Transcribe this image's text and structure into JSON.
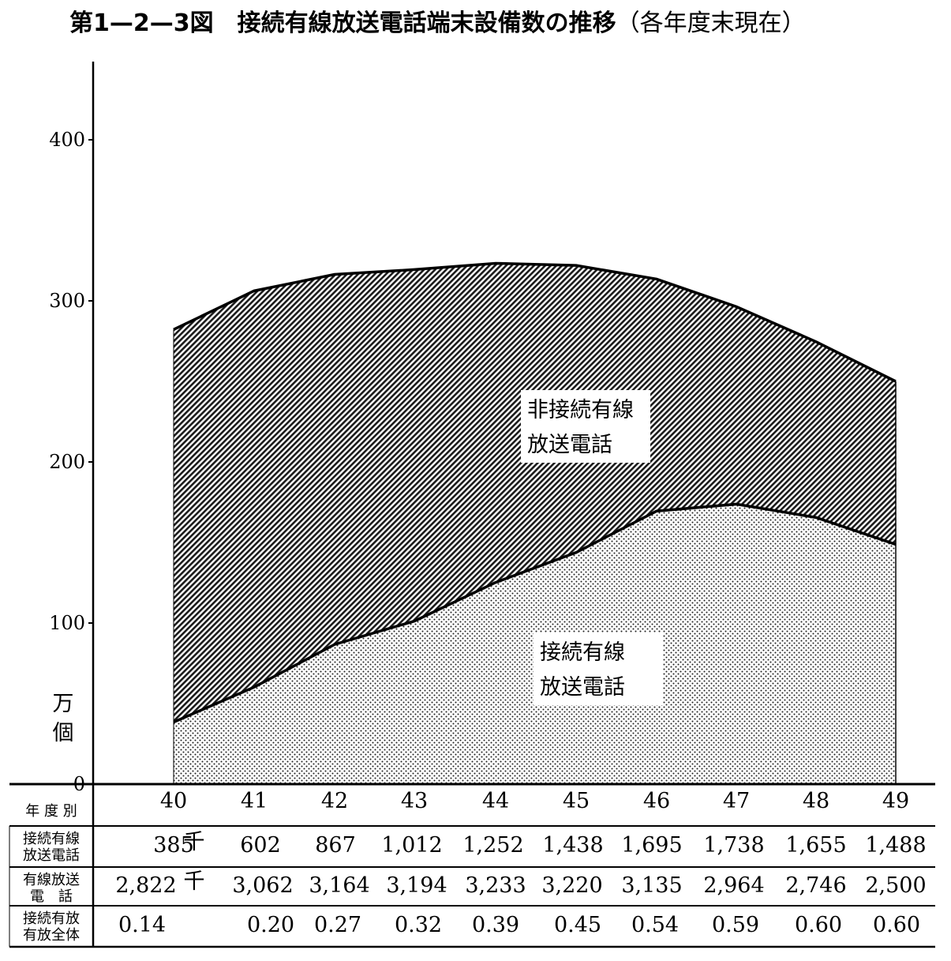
{
  "title": {
    "main": "第1—2—3図　接続有線放送電話端末設備数の推移",
    "paren": "（各年度末現在）"
  },
  "chart_data": {
    "type": "area",
    "stacked": true,
    "unit_label": [
      "万",
      "個"
    ],
    "y_ticks": [
      "0",
      "100",
      "200",
      "300",
      "400"
    ],
    "ylim": [
      0,
      400
    ],
    "categories": [
      "40",
      "41",
      "42",
      "43",
      "44",
      "45",
      "46",
      "47",
      "48",
      "49"
    ],
    "series": [
      {
        "name": "接続有線放送電話",
        "label_lines": [
          "接続有線",
          "放送電話"
        ],
        "values": [
          38.5,
          60.2,
          86.7,
          101.2,
          125.2,
          143.8,
          169.5,
          173.8,
          165.5,
          148.8
        ],
        "pattern": "dots"
      },
      {
        "name": "非接続有線放送電話",
        "label_lines": [
          "非接続有線",
          "放送電話"
        ],
        "totals": [
          282.2,
          306.2,
          316.4,
          319.4,
          323.3,
          322.0,
          313.5,
          296.4,
          274.6,
          250.0
        ],
        "pattern": "hatch"
      }
    ]
  },
  "table": {
    "rows": [
      {
        "header": [
          "年 度 別"
        ],
        "cells": [
          "40",
          "41",
          "42",
          "43",
          "44",
          "45",
          "46",
          "47",
          "48",
          "49"
        ]
      },
      {
        "header": [
          "接続有線",
          "放送電話"
        ],
        "unit": "千",
        "cells": [
          "385",
          "602",
          "867",
          "1,012",
          "1,252",
          "1,438",
          "1,695",
          "1,738",
          "1,655",
          "1,488"
        ]
      },
      {
        "header": [
          "有線放送",
          "電　話"
        ],
        "unit": "千",
        "cells": [
          "2,822",
          "3,062",
          "3,164",
          "3,194",
          "3,233",
          "3,220",
          "3,135",
          "2,964",
          "2,746",
          "2,500"
        ]
      },
      {
        "header": [
          "接続有放",
          "有放全体"
        ],
        "cells": [
          "0.14",
          "0.20",
          "0.27",
          "0.32",
          "0.39",
          "0.45",
          "0.54",
          "0.59",
          "0.60",
          "0.60"
        ]
      }
    ]
  }
}
